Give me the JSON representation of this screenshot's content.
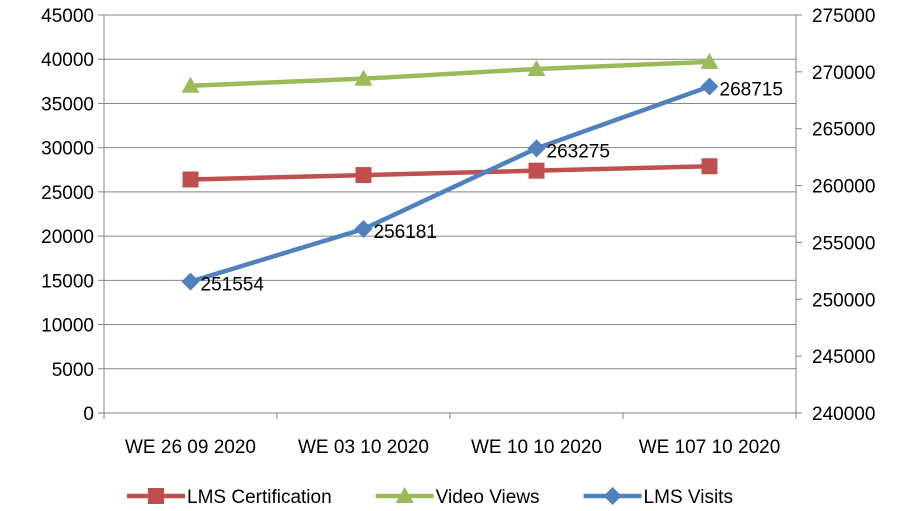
{
  "chart_data": {
    "type": "line",
    "categories": [
      "WE 26 09 2020",
      "WE 03 10 2020",
      "WE 10 10 2020",
      "WE 107 10 2020"
    ],
    "y_left": {
      "min": 0,
      "max": 45000,
      "step": 5000
    },
    "y_right": {
      "min": 240000,
      "max": 275000,
      "step": 5000
    },
    "grid": "horizontal",
    "legend_position": "bottom",
    "series": [
      {
        "name": "LMS Certification",
        "axis": "left",
        "color": "#C0504D",
        "marker": "square",
        "values": [
          26400,
          26900,
          27400,
          27900
        ],
        "show_labels": false
      },
      {
        "name": "Video Views",
        "axis": "left",
        "color": "#9BBB59",
        "marker": "triangle",
        "values": [
          37000,
          37800,
          38900,
          39700
        ],
        "show_labels": false
      },
      {
        "name": "LMS Visits",
        "axis": "right",
        "color": "#4F81BD",
        "marker": "diamond",
        "values": [
          251554,
          256181,
          263275,
          268715
        ],
        "show_labels": true
      }
    ]
  }
}
